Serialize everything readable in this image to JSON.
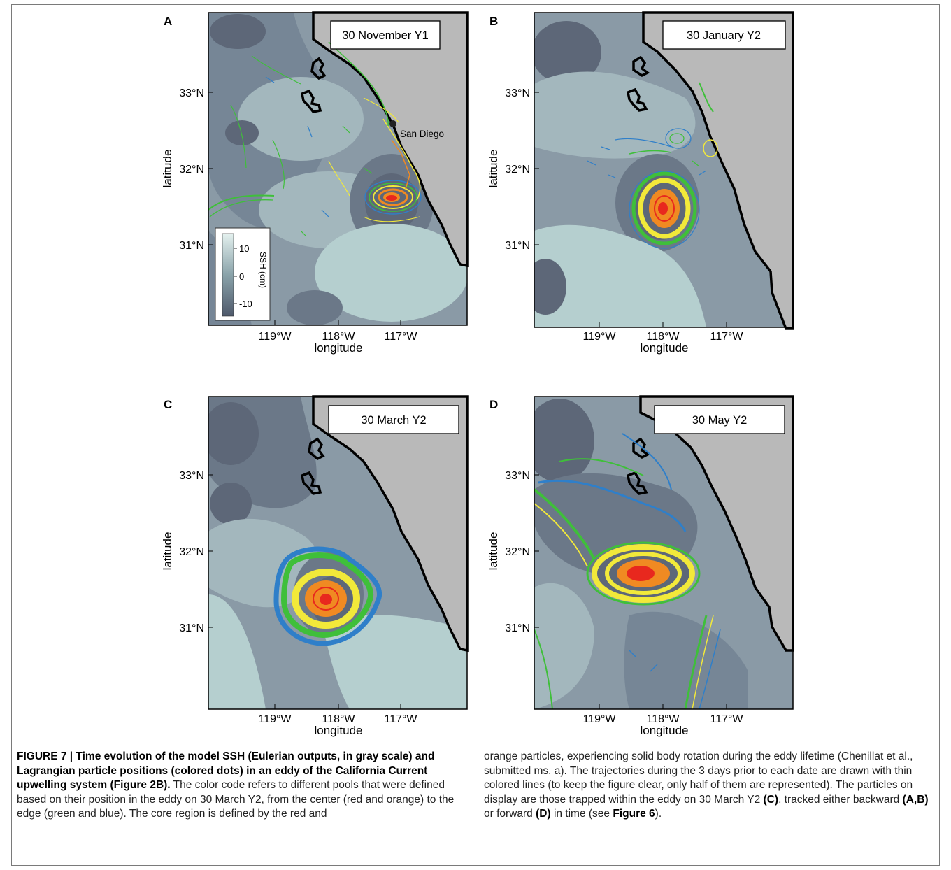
{
  "panels": [
    {
      "letter": "A",
      "date": "30 November  Y1",
      "city": "San Diego"
    },
    {
      "letter": "B",
      "date": "30 January Y2"
    },
    {
      "letter": "C",
      "date": "30 March Y2"
    },
    {
      "letter": "D",
      "date": "30 May Y2"
    }
  ],
  "axes": {
    "xlabel": "longitude",
    "ylabel": "latitude",
    "xticks": [
      "119°W",
      "118°W",
      "117°W"
    ],
    "yticks": [
      "33°N",
      "32°N",
      "31°N"
    ]
  },
  "colorbar": {
    "label": "SSH (cm)",
    "ticks": [
      "10",
      "0",
      "-10"
    ]
  },
  "colors": {
    "land": "#b9b9b9",
    "coast": "#000000",
    "ssh_low": "#5d6778",
    "ssh_mid": "#7f95a0",
    "ssh_high": "#cfe4e2",
    "red": "#e8281e",
    "orange": "#f08a22",
    "yellow": "#f2e93a",
    "green": "#3fbf3a",
    "blue": "#2f7fc9"
  },
  "caption": {
    "figure_label": "FIGURE 7 | Time evolution of the model SSH (Eulerian outputs, in gray scale) and Lagrangian particle positions (colored dots) in an eddy of the California Current upwelling system (Figure 2B).",
    "p1": "The color code refers to different pools that were defined based on their position in the eddy on 30 March Y2, from the center (red and orange) to the edge (green and blue). The core region is defined by the red and",
    "p2a": "orange particles, experiencing solid body rotation during the eddy lifetime (Chenillat et al., submitted ms. a). The trajectories during the 3 days prior to each date are drawn with thin colored lines (to keep the figure clear, only half of them are represented). The particles on display are those trapped within the eddy on 30 March Y2",
    "ref_c": "(C)",
    "p2b": ", tracked either backward",
    "ref_ab": "(A,B)",
    "p2c": "or forward",
    "ref_d": "(D)",
    "p2d": "in time (see",
    "ref_fig6": "Figure 6",
    "p2e": ")."
  }
}
